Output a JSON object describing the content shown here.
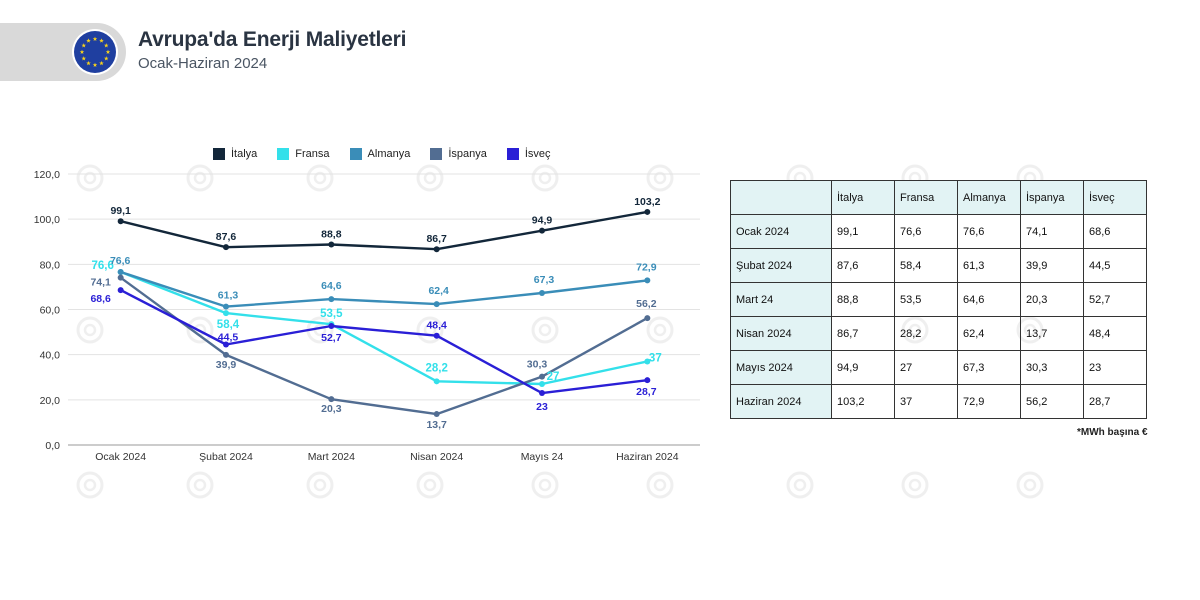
{
  "header": {
    "title": "Avrupa'da Enerji Maliyetleri",
    "subtitle": "Ocak-Haziran 2024"
  },
  "colors": {
    "italya": "#13273a",
    "fransa": "#33e0ea",
    "almanya": "#3a8db8",
    "ispanya": "#526d92",
    "isvec": "#2a1fd6"
  },
  "chart_data": {
    "type": "line",
    "title": "Avrupa'da Enerji Maliyetleri",
    "categories": [
      "Ocak 2024",
      "Şubat 2024",
      "Mart 2024",
      "Nisan 2024",
      "Mayıs 24",
      "Haziran 2024"
    ],
    "yticks": [
      "0,0",
      "20,0",
      "40,0",
      "60,0",
      "80,0",
      "100,0",
      "120,0"
    ],
    "ylim": [
      0,
      120
    ],
    "grid": true,
    "legend_position": "top",
    "series": [
      {
        "name": "İtalya",
        "key": "italya",
        "values": [
          99.1,
          87.6,
          88.8,
          86.7,
          94.9,
          103.2
        ],
        "labels": [
          "99,1",
          "87,6",
          "88,8",
          "86,7",
          "94,9",
          "103,2"
        ]
      },
      {
        "name": "Fransa",
        "key": "fransa",
        "values": [
          76.6,
          58.4,
          53.5,
          28.2,
          27,
          37
        ],
        "labels": [
          "76,6",
          "58,4",
          "53,5",
          "28,2",
          "27",
          "37"
        ]
      },
      {
        "name": "Almanya",
        "key": "almanya",
        "values": [
          76.6,
          61.3,
          64.6,
          62.4,
          67.3,
          72.9
        ],
        "labels": [
          "76,6",
          "61,3",
          "64,6",
          "62,4",
          "67,3",
          "72,9"
        ]
      },
      {
        "name": "İspanya",
        "key": "ispanya",
        "values": [
          74.1,
          39.9,
          20.3,
          13.7,
          30.3,
          56.2
        ],
        "labels": [
          "74,1",
          "39,9",
          "20,3",
          "13,7",
          "30,3",
          "56,2"
        ]
      },
      {
        "name": "İsveç",
        "key": "isvec",
        "values": [
          68.6,
          44.5,
          52.7,
          48.4,
          23,
          28.7
        ],
        "labels": [
          "68,6",
          "44,5",
          "52,7",
          "48,4",
          "23",
          "28,7"
        ]
      }
    ]
  },
  "table": {
    "headers": [
      "",
      "İtalya",
      "Fransa",
      "Almanya",
      "İspanya",
      "İsveç"
    ],
    "rows": [
      [
        "Ocak 2024",
        "99,1",
        "76,6",
        "76,6",
        "74,1",
        "68,6"
      ],
      [
        "Şubat 2024",
        "87,6",
        "58,4",
        "61,3",
        "39,9",
        "44,5"
      ],
      [
        "Mart 24",
        "88,8",
        "53,5",
        "64,6",
        "20,3",
        "52,7"
      ],
      [
        "Nisan 2024",
        "86,7",
        "28,2",
        "62,4",
        "13,7",
        "48,4"
      ],
      [
        "Mayıs 2024",
        "94,9",
        "27",
        "67,3",
        "30,3",
        "23"
      ],
      [
        "Haziran 2024",
        "103,2",
        "37",
        "72,9",
        "56,2",
        "28,7"
      ]
    ]
  },
  "footnote": "*MWh başına €",
  "watermark": "SteelRadar"
}
